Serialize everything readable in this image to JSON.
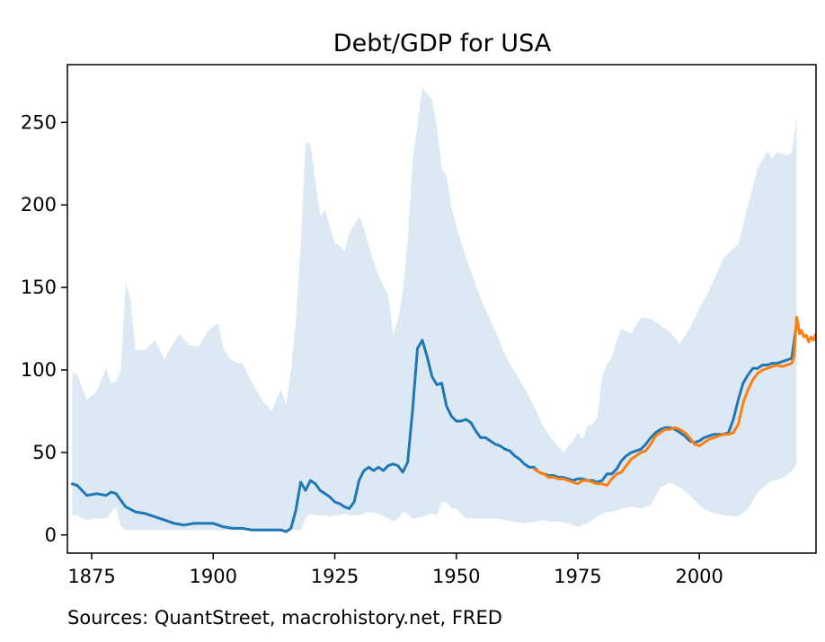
{
  "chart_data": {
    "type": "line",
    "title": "Debt/GDP for USA",
    "xlabel": "",
    "ylabel": "",
    "xlim": [
      1870,
      2024
    ],
    "ylim": [
      -11,
      285
    ],
    "grid": false,
    "x_ticks": [
      1875,
      1900,
      1925,
      1950,
      1975,
      2000
    ],
    "y_ticks": [
      0,
      50,
      100,
      150,
      200,
      250
    ],
    "colors": {
      "band": "#dce8f3",
      "series_1": "#1f77b4",
      "series_2": "#ff7f0e"
    },
    "band": {
      "x": [
        1871,
        1872,
        1874,
        1876,
        1878,
        1879,
        1880,
        1881,
        1882,
        1883,
        1884,
        1886,
        1888,
        1890,
        1891,
        1893,
        1895,
        1897,
        1899,
        1901,
        1902,
        1903,
        1905,
        1906,
        1908,
        1910,
        1912,
        1913,
        1914,
        1915,
        1916,
        1917,
        1918,
        1919,
        1920,
        1921,
        1922,
        1923,
        1924,
        1925,
        1926,
        1927,
        1928,
        1930,
        1931,
        1932,
        1934,
        1936,
        1937,
        1938,
        1939,
        1940,
        1941,
        1943,
        1945,
        1946,
        1947,
        1948,
        1949,
        1950,
        1952,
        1955,
        1958,
        1960,
        1962,
        1964,
        1966,
        1968,
        1970,
        1972,
        1974,
        1975,
        1976,
        1977,
        1978,
        1979,
        1980,
        1981,
        1982,
        1983,
        1984,
        1986,
        1988,
        1990,
        1992,
        1994,
        1996,
        1998,
        2000,
        2002,
        2005,
        2008,
        2010,
        2012,
        2014,
        2015,
        2016,
        2018,
        2019,
        2020
      ],
      "upper": [
        99,
        97,
        82,
        87,
        101,
        92,
        93,
        100,
        153,
        143,
        112,
        112,
        118,
        106,
        112,
        122,
        115,
        114,
        124,
        128,
        114,
        108,
        104,
        104,
        92,
        82,
        75,
        82,
        88,
        79,
        100,
        130,
        175,
        238,
        237,
        215,
        193,
        197,
        187,
        177,
        175,
        172,
        183,
        193,
        186,
        175,
        157,
        145,
        122,
        130,
        147,
        178,
        226,
        271,
        264,
        247,
        222,
        218,
        199,
        187,
        168,
        143,
        124,
        109,
        99,
        89,
        78,
        65,
        57,
        50,
        57,
        62,
        58,
        66,
        67,
        71,
        96,
        103,
        108,
        118,
        125,
        122,
        132,
        131,
        127,
        123,
        116,
        125,
        137,
        148,
        168,
        176,
        200,
        222,
        233,
        228,
        232,
        230,
        232,
        253
      ],
      "lower": [
        12,
        12,
        9,
        10,
        10,
        14,
        17,
        5,
        3,
        3,
        3,
        3,
        3,
        3,
        3,
        3,
        3,
        3,
        3,
        3,
        3,
        3,
        3,
        3,
        3,
        3,
        3,
        3,
        3,
        3,
        3,
        3,
        3,
        10,
        13,
        12,
        12,
        12,
        11,
        12,
        12,
        13,
        12,
        12,
        13,
        14,
        13,
        10,
        8,
        10,
        14,
        13,
        10,
        11,
        13,
        12,
        20,
        20,
        16,
        16,
        10,
        10,
        10,
        9,
        8,
        7,
        8,
        9,
        8,
        8,
        6,
        5,
        6,
        7,
        9,
        11,
        13,
        14,
        14,
        15,
        16,
        17,
        16,
        18,
        29,
        32,
        29,
        24,
        18,
        14,
        12,
        11,
        16,
        26,
        31,
        33,
        33,
        36,
        39,
        43
      ]
    },
    "series": [
      {
        "x": [
          1871,
          1872,
          1873,
          1874,
          1876,
          1878,
          1879,
          1880,
          1881,
          1882,
          1884,
          1886,
          1888,
          1890,
          1892,
          1894,
          1896,
          1898,
          1900,
          1902,
          1904,
          1906,
          1908,
          1910,
          1912,
          1914,
          1915,
          1916,
          1917,
          1918,
          1919,
          1920,
          1921,
          1922,
          1923,
          1924,
          1925,
          1926,
          1927,
          1928,
          1929,
          1930,
          1931,
          1932,
          1933,
          1934,
          1935,
          1936,
          1937,
          1938,
          1939,
          1940,
          1941,
          1942,
          1943,
          1944,
          1945,
          1946,
          1947,
          1948,
          1949,
          1950,
          1951,
          1952,
          1953,
          1954,
          1955,
          1956,
          1957,
          1958,
          1959,
          1960,
          1961,
          1962,
          1963,
          1964,
          1965,
          1966,
          1967,
          1968,
          1969,
          1970,
          1971,
          1972,
          1973,
          1974,
          1975,
          1976,
          1977,
          1978,
          1979,
          1980,
          1981,
          1982,
          1983,
          1984,
          1985,
          1986,
          1987,
          1988,
          1989,
          1990,
          1991,
          1992,
          1993,
          1994,
          1995,
          1996,
          1997,
          1998,
          1999,
          2000,
          2001,
          2002,
          2003,
          2004,
          2005,
          2006,
          2007,
          2008,
          2009,
          2010,
          2011,
          2012,
          2013,
          2014,
          2015,
          2016,
          2017,
          2018,
          2019,
          2020
        ],
        "y": [
          31,
          30,
          27,
          24,
          25,
          24,
          26,
          25,
          21,
          17,
          14,
          13,
          11,
          9,
          7,
          6,
          7,
          7,
          7,
          5,
          4,
          4,
          3,
          3,
          3,
          3,
          2,
          4,
          15,
          32,
          27,
          33,
          31,
          27,
          25,
          23,
          20,
          19,
          17,
          16,
          20,
          33,
          39,
          41,
          39,
          41,
          39,
          42,
          43,
          42,
          38,
          44,
          75,
          113,
          118,
          108,
          96,
          91,
          92,
          78,
          72,
          69,
          69,
          70,
          68,
          63,
          59,
          59,
          57,
          55,
          54,
          52,
          51,
          48,
          46,
          43,
          41,
          41,
          38,
          37,
          36,
          36,
          35,
          35,
          34,
          33,
          34,
          34,
          33,
          33,
          32,
          33,
          37,
          37,
          40,
          45,
          48,
          50,
          51,
          52,
          55,
          59,
          62,
          64,
          65,
          65,
          64,
          62,
          60,
          57,
          56,
          57,
          59,
          60,
          61,
          61,
          61,
          62,
          70,
          82,
          92,
          97,
          101,
          101,
          103,
          103,
          104,
          104,
          105,
          106,
          107,
          128
        ]
      },
      {
        "x": [
          1966,
          1967,
          1968,
          1969,
          1970,
          1971,
          1972,
          1973,
          1974,
          1975,
          1976,
          1977,
          1978,
          1979,
          1980,
          1981,
          1982,
          1983,
          1984,
          1985,
          1986,
          1987,
          1988,
          1989,
          1990,
          1991,
          1992,
          1993,
          1994,
          1995,
          1996,
          1997,
          1998,
          1999,
          2000,
          2001,
          2002,
          2003,
          2004,
          2005,
          2006,
          2007,
          2008,
          2009,
          2010,
          2011,
          2012,
          2013,
          2014,
          2015,
          2016,
          2017,
          2018,
          2019,
          2019.5,
          2020,
          2020.3,
          2020.6,
          2021,
          2021.5,
          2022,
          2022.5,
          2023,
          2023.5,
          2024
        ],
        "y": [
          40,
          38,
          37,
          35,
          35,
          34,
          34,
          33,
          32,
          31,
          33,
          33,
          32,
          31,
          31,
          30,
          34,
          37,
          38,
          42,
          46,
          48,
          50,
          51,
          55,
          60,
          62,
          64,
          64,
          65,
          64,
          62,
          59,
          55,
          54,
          56,
          58,
          59,
          60,
          61,
          61,
          62,
          67,
          80,
          88,
          94,
          98,
          100,
          101,
          102,
          103,
          102,
          103,
          104,
          108,
          132,
          128,
          122,
          124,
          120,
          121,
          117,
          120,
          118,
          122
        ]
      }
    ],
    "annotation": "Sources: QuantStreet, macrohistory.net, FRED"
  }
}
